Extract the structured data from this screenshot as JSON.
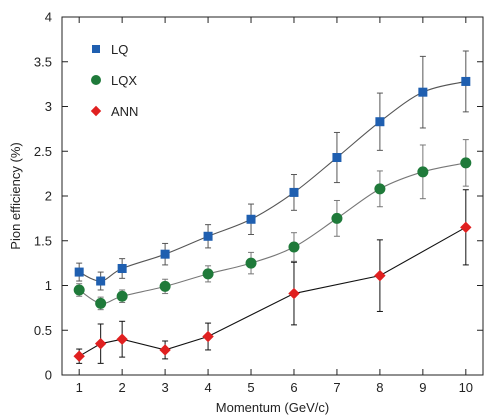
{
  "chart_data": {
    "type": "line",
    "xlabel": "Momentum (GeV/c)",
    "ylabel": "Pion efficiency (%)",
    "xlim": [
      0.6,
      10.4
    ],
    "ylim": [
      0,
      4
    ],
    "xticks": [
      1,
      2,
      3,
      4,
      5,
      6,
      7,
      8,
      9,
      10
    ],
    "yticks": [
      0,
      0.5,
      1,
      1.5,
      2,
      2.5,
      3,
      3.5,
      4
    ],
    "ytick_labels": [
      "0",
      "0.5",
      "1",
      "1.5",
      "2",
      "2.5",
      "3",
      "3.5",
      "4"
    ],
    "grid": false,
    "legend_position": "top-left",
    "series": [
      {
        "name": "LQ",
        "marker": "square",
        "color": "#1f5fb0",
        "line_color": "#555555",
        "line_style": "smooth",
        "x": [
          1,
          1.5,
          2,
          3,
          4,
          5,
          6,
          7,
          8,
          9,
          10
        ],
        "y": [
          1.15,
          1.05,
          1.19,
          1.35,
          1.55,
          1.74,
          2.04,
          2.43,
          2.83,
          3.16,
          3.28
        ],
        "err": [
          0.1,
          0.1,
          0.11,
          0.12,
          0.13,
          0.17,
          0.2,
          0.28,
          0.32,
          0.4,
          0.34
        ]
      },
      {
        "name": "LQX",
        "marker": "circle",
        "color": "#1f7a3a",
        "line_color": "#777777",
        "line_style": "smooth",
        "x": [
          1,
          1.5,
          2,
          3,
          4,
          5,
          6,
          7,
          8,
          9,
          10
        ],
        "y": [
          0.95,
          0.8,
          0.88,
          0.99,
          1.13,
          1.25,
          1.43,
          1.75,
          2.08,
          2.27,
          2.37
        ],
        "err": [
          0.07,
          0.07,
          0.07,
          0.08,
          0.09,
          0.12,
          0.16,
          0.2,
          0.2,
          0.3,
          0.26
        ]
      },
      {
        "name": "ANN",
        "marker": "diamond",
        "color": "#e02020",
        "line_color": "#111111",
        "line_style": "straight",
        "x": [
          1,
          1.5,
          2,
          3,
          4,
          6,
          8,
          10
        ],
        "y": [
          0.21,
          0.35,
          0.4,
          0.28,
          0.43,
          0.91,
          1.11,
          1.65
        ],
        "err": [
          0.08,
          0.22,
          0.2,
          0.1,
          0.15,
          0.35,
          0.4,
          0.42
        ]
      }
    ]
  }
}
